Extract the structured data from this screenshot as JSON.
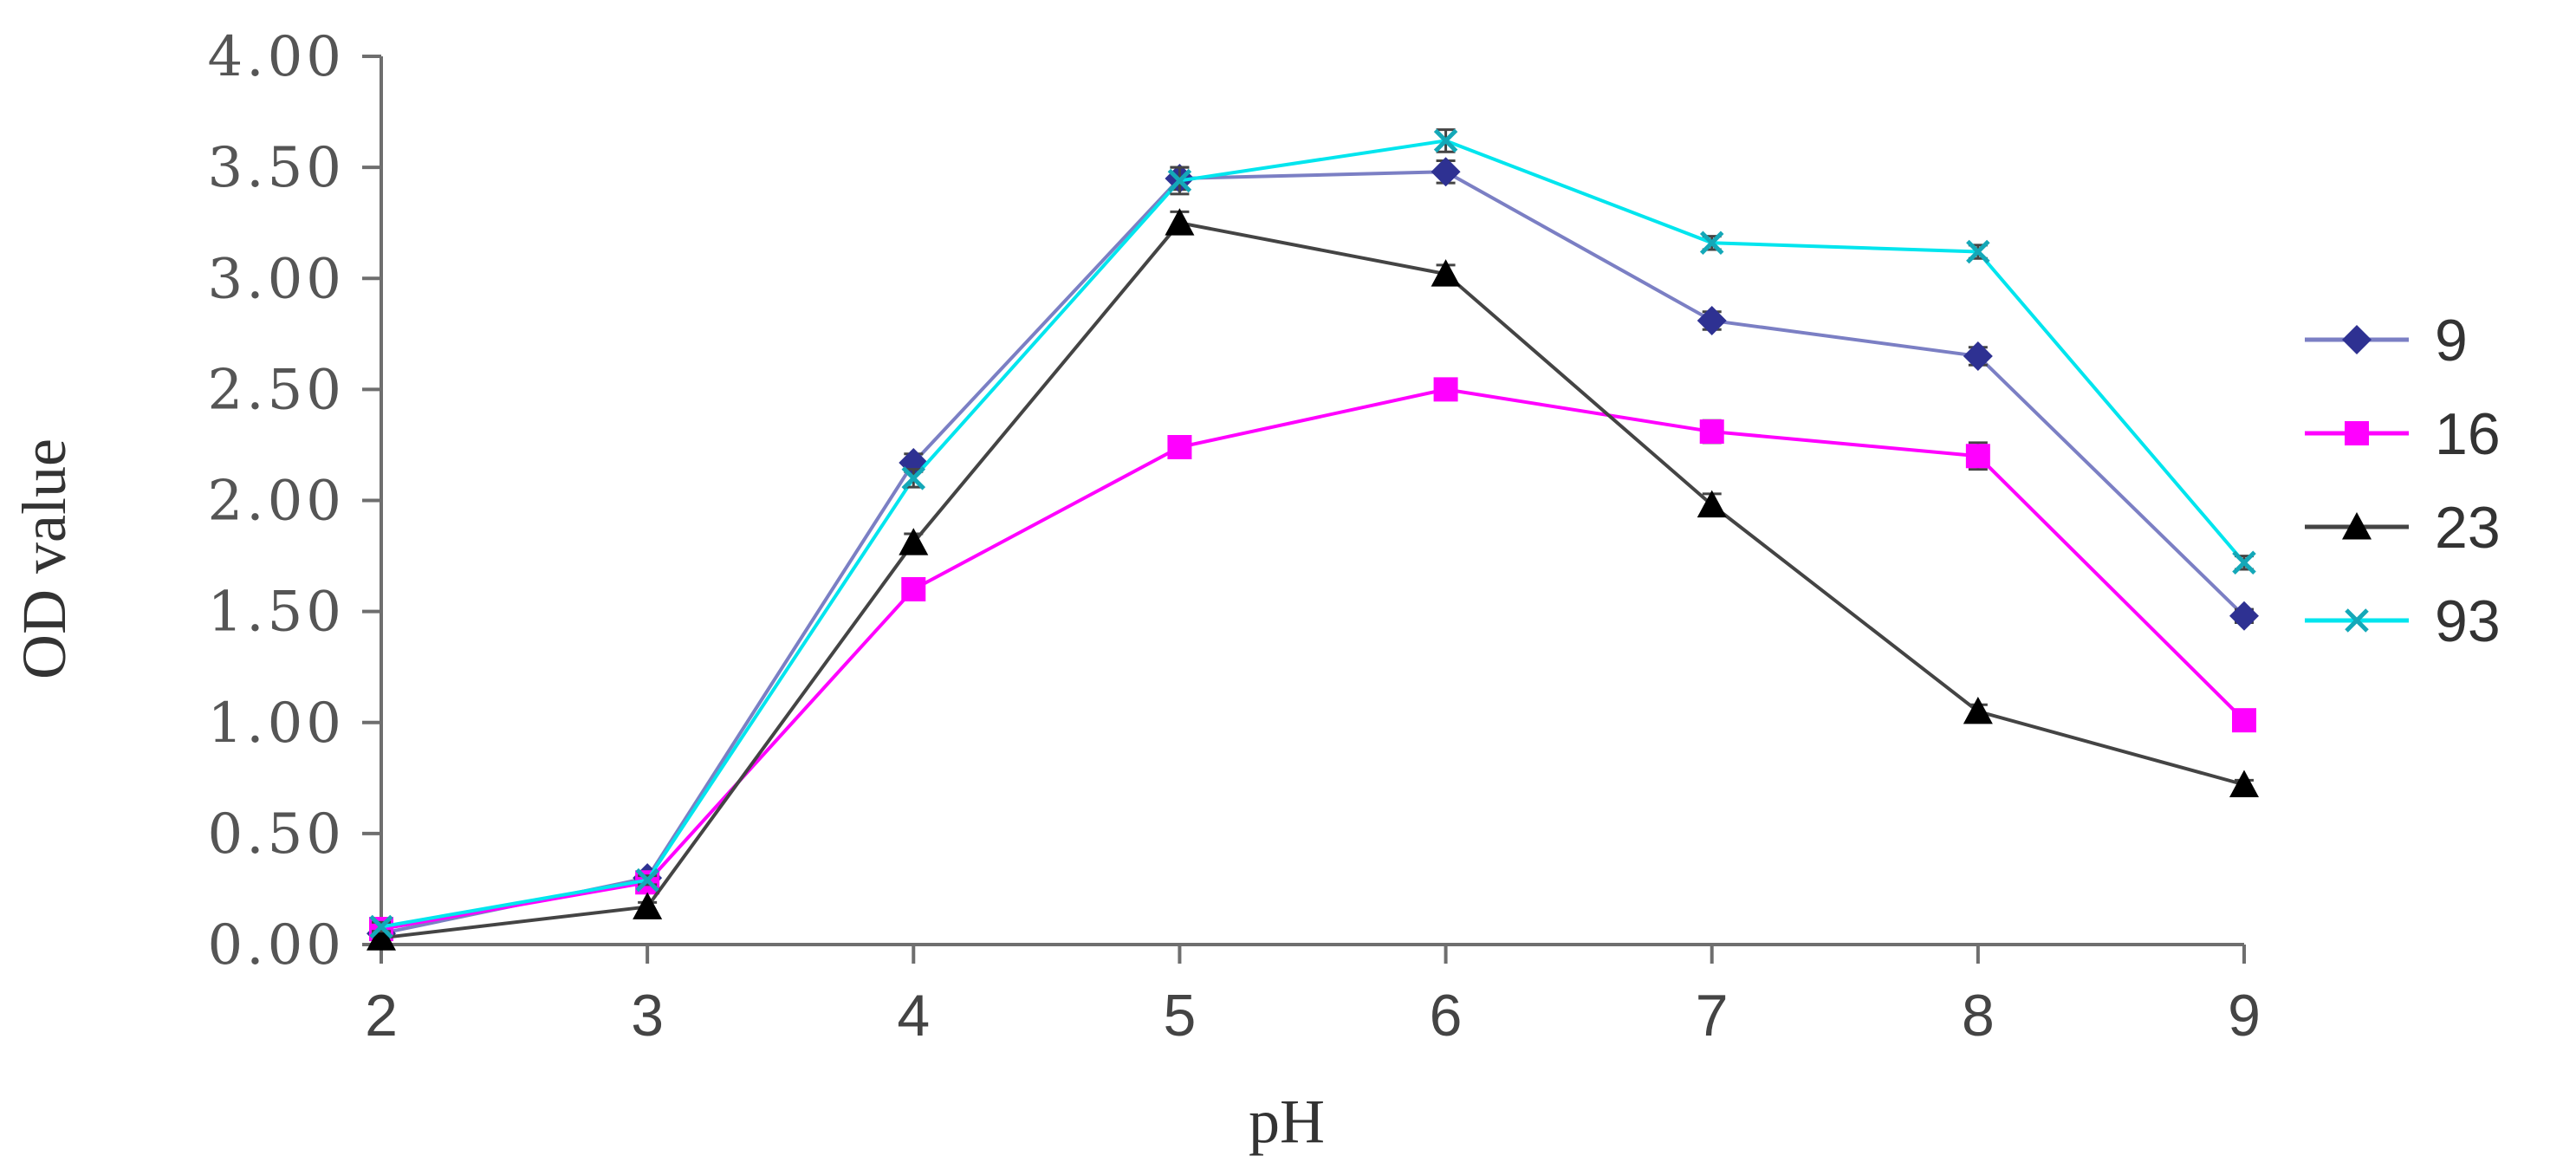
{
  "chart_data": {
    "type": "line",
    "title": "",
    "xlabel": "pH",
    "ylabel": "OD value",
    "x": [
      2,
      3,
      4,
      5,
      6,
      7,
      8,
      9
    ],
    "xtick_labels": [
      "2",
      "3",
      "4",
      "5",
      "6",
      "7",
      "8",
      "9"
    ],
    "ylim": [
      0,
      4
    ],
    "yticks": [
      0,
      0.5,
      1,
      1.5,
      2,
      2.5,
      3,
      3.5,
      4
    ],
    "ytick_labels": [
      "0.00",
      "0.50",
      "1.00",
      "1.50",
      "2.00",
      "2.50",
      "3.00",
      "3.50",
      "4.00"
    ],
    "grid": false,
    "legend_position": "right",
    "error_bars": true,
    "series": [
      {
        "name": "9",
        "color": "#2e3192",
        "line_color": "#7b7fc4",
        "marker": "diamond",
        "values": [
          0.05,
          0.3,
          2.17,
          3.45,
          3.48,
          2.81,
          2.65,
          1.48
        ],
        "errors": [
          0.02,
          0.02,
          0.04,
          0.05,
          0.05,
          0.04,
          0.04,
          0.03
        ]
      },
      {
        "name": "16",
        "color": "#ff00ff",
        "line_color": "#ff00ff",
        "marker": "square",
        "values": [
          0.07,
          0.28,
          1.6,
          2.24,
          2.5,
          2.31,
          2.2,
          1.01
        ],
        "errors": [
          0.02,
          0.02,
          0.04,
          0.04,
          0.04,
          0.05,
          0.06,
          0.02
        ]
      },
      {
        "name": "23",
        "color": "#000000",
        "line_color": "#444444",
        "marker": "triangle",
        "values": [
          0.03,
          0.17,
          1.81,
          3.25,
          3.02,
          1.98,
          1.05,
          0.72
        ],
        "errors": [
          0.02,
          0.02,
          0.04,
          0.05,
          0.04,
          0.05,
          0.03,
          0.02
        ]
      },
      {
        "name": "93",
        "color": "#14a8b8",
        "line_color": "#00e5ee",
        "marker": "x",
        "values": [
          0.08,
          0.29,
          2.1,
          3.44,
          3.62,
          3.16,
          3.12,
          1.72
        ],
        "errors": [
          0.02,
          0.02,
          0.04,
          0.06,
          0.05,
          0.03,
          0.03,
          0.03
        ]
      }
    ]
  }
}
